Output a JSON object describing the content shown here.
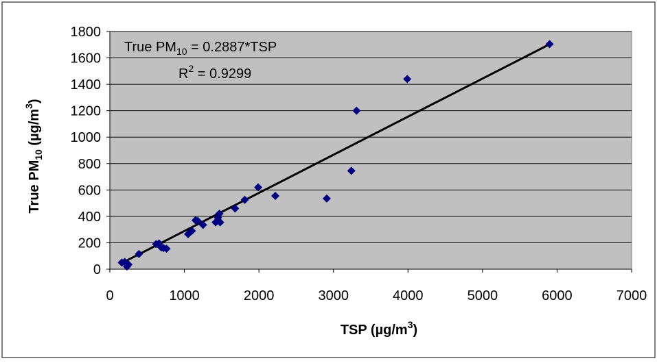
{
  "chart_data": {
    "type": "scatter",
    "title": "",
    "xlabel": {
      "main": "TSP (µg/m",
      "sup": "3",
      "tail": ")"
    },
    "ylabel": {
      "main": "True PM",
      "sub": "10",
      "tail": " (µg/m",
      "sup": "3",
      "end": ")"
    },
    "xlim": [
      0,
      7000
    ],
    "ylim": [
      0,
      1800
    ],
    "xticks": [
      "0",
      "1000",
      "2000",
      "3000",
      "4000",
      "5000",
      "6000",
      "7000"
    ],
    "yticks": [
      "0",
      "200",
      "400",
      "600",
      "800",
      "1000",
      "1200",
      "1400",
      "1600",
      "1800"
    ],
    "grid": true,
    "legend": "none",
    "plot_background": "#c0c0c0",
    "marker_color": "#000080",
    "trendline_color": "#000000",
    "annotations": {
      "equation": {
        "pre": "True PM",
        "sub": "10",
        "post": " = 0.2887*TSP"
      },
      "r2": {
        "pre": "R",
        "sup": "2",
        "post": " = 0.9299"
      }
    },
    "trendline": {
      "slope": 0.2887,
      "intercept": 0,
      "x_range": [
        150,
        5880
      ]
    },
    "series": [
      {
        "points": [
          [
            160,
            50
          ],
          [
            200,
            55
          ],
          [
            230,
            20
          ],
          [
            250,
            35
          ],
          [
            390,
            115
          ],
          [
            620,
            190
          ],
          [
            660,
            195
          ],
          [
            690,
            165
          ],
          [
            720,
            160
          ],
          [
            760,
            155
          ],
          [
            1050,
            265
          ],
          [
            1100,
            290
          ],
          [
            1150,
            370
          ],
          [
            1180,
            365
          ],
          [
            1250,
            335
          ],
          [
            1420,
            355
          ],
          [
            1450,
            390
          ],
          [
            1470,
            420
          ],
          [
            1480,
            355
          ],
          [
            1680,
            460
          ],
          [
            1810,
            525
          ],
          [
            1990,
            620
          ],
          [
            2220,
            555
          ],
          [
            2910,
            535
          ],
          [
            3240,
            745
          ],
          [
            3310,
            1200
          ],
          [
            3990,
            1440
          ],
          [
            5900,
            1705
          ]
        ]
      }
    ]
  }
}
